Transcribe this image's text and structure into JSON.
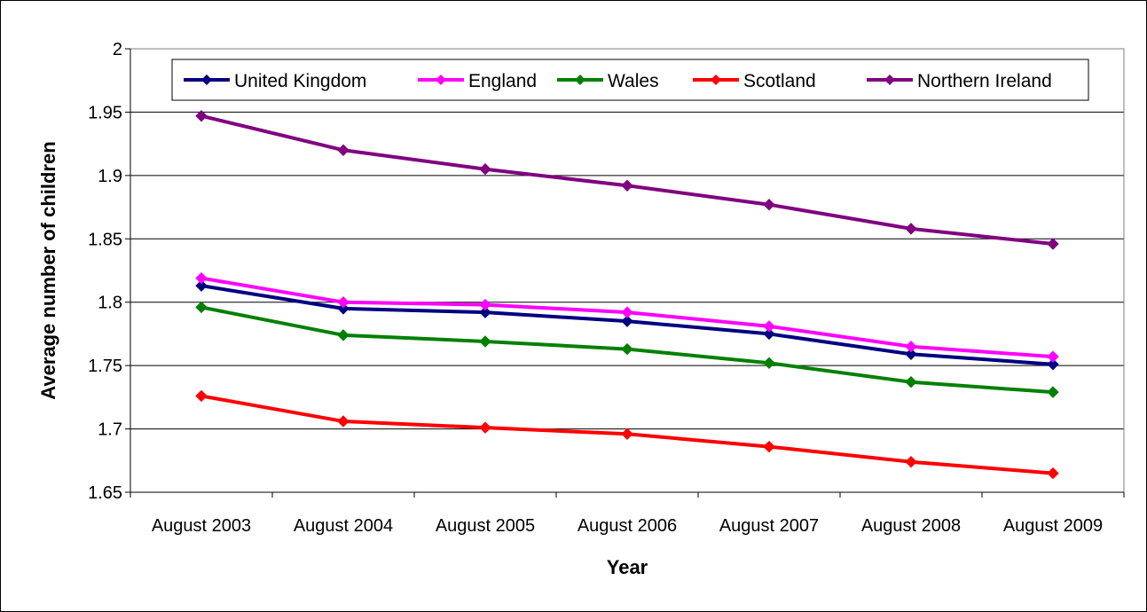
{
  "chart_data": {
    "type": "line",
    "title": "",
    "xlabel": "Year",
    "ylabel": "Average number of children",
    "categories": [
      "August 2003",
      "August 2004",
      "August 2005",
      "August 2006",
      "August 2007",
      "August 2008",
      "August 2009"
    ],
    "ylim": [
      1.65,
      2
    ],
    "yticks": [
      "1.65",
      "1.7",
      "1.75",
      "1.8",
      "1.85",
      "1.9",
      "1.95",
      "2"
    ],
    "grid": true,
    "legend": "top",
    "series": [
      {
        "name": "United Kingdom",
        "color": "#000080",
        "values": [
          1.813,
          1.795,
          1.792,
          1.785,
          1.775,
          1.759,
          1.751
        ]
      },
      {
        "name": "England",
        "color": "#ff00ff",
        "values": [
          1.819,
          1.8,
          1.798,
          1.792,
          1.781,
          1.765,
          1.757
        ]
      },
      {
        "name": "Wales",
        "color": "#008000",
        "values": [
          1.796,
          1.774,
          1.769,
          1.763,
          1.752,
          1.737,
          1.729
        ]
      },
      {
        "name": "Scotland",
        "color": "#ff0000",
        "values": [
          1.726,
          1.706,
          1.701,
          1.696,
          1.686,
          1.674,
          1.665
        ]
      },
      {
        "name": "Northern Ireland",
        "color": "#800080",
        "values": [
          1.947,
          1.92,
          1.905,
          1.892,
          1.877,
          1.858,
          1.846
        ]
      }
    ]
  }
}
